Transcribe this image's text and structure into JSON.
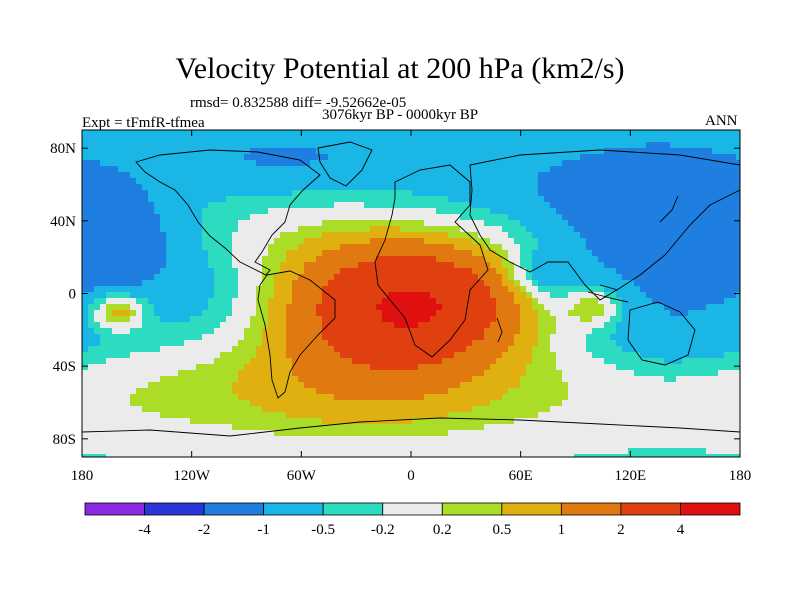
{
  "chart_data": {
    "type": "heatmap",
    "title": "Velocity Potential at 200 hPa (km2/s)",
    "stats_text": "rmsd= 0.832588 diff= -9.52662e-05",
    "left_label": "Expt = tFmfR-tfmea",
    "center_label": "3076kyr BP - 0000kyr BP",
    "right_label": "ANN",
    "xlabel": "",
    "ylabel": "",
    "x_range": [
      -180,
      180
    ],
    "y_range": [
      -90,
      90
    ],
    "x_ticks": [
      {
        "value": -180,
        "label": "180"
      },
      {
        "value": -120,
        "label": "120W"
      },
      {
        "value": -60,
        "label": "60W"
      },
      {
        "value": 0,
        "label": "0"
      },
      {
        "value": 60,
        "label": "60E"
      },
      {
        "value": 120,
        "label": "120E"
      },
      {
        "value": 180,
        "label": "180"
      }
    ],
    "y_ticks": [
      {
        "value": 80,
        "label": "80N"
      },
      {
        "value": 40,
        "label": "40N"
      },
      {
        "value": 0,
        "label": "0"
      },
      {
        "value": -40,
        "label": "40S"
      },
      {
        "value": -80,
        "label": "80S"
      }
    ],
    "colorbar": {
      "levels": [
        -4,
        -2,
        -1,
        -0.5,
        -0.2,
        0.2,
        0.5,
        1,
        2,
        4
      ],
      "level_labels": [
        "-4",
        "-2",
        "-1",
        "-0.5",
        "-0.2",
        "0.2",
        "0.5",
        "1",
        "2",
        "4"
      ],
      "colors": [
        "#8a2be2",
        "#2a36d8",
        "#1f7fe0",
        "#19b6e6",
        "#2ddcc0",
        "#ebebeb",
        "#aadc28",
        "#e0b010",
        "#e07a10",
        "#e04010",
        "#e01010"
      ]
    },
    "field_centers": [
      {
        "lon": 5,
        "lat": -5,
        "amp": 3.8,
        "sx": 38,
        "sy": 22
      },
      {
        "lon": -25,
        "lat": -20,
        "amp": 1.2,
        "sx": 40,
        "sy": 28
      },
      {
        "lon": -160,
        "lat": -10,
        "amp": 1.4,
        "sx": 10,
        "sy": 7
      },
      {
        "lon": 100,
        "lat": -8,
        "amp": 0.9,
        "sx": 10,
        "sy": 7
      },
      {
        "lon": -40,
        "lat": -55,
        "amp": 0.8,
        "sx": 140,
        "sy": 22
      },
      {
        "lon": -60,
        "lat": 25,
        "amp": 0.4,
        "sx": 35,
        "sy": 20
      },
      {
        "lon": 140,
        "lat": 35,
        "amp": -1.2,
        "sx": 35,
        "sy": 30
      },
      {
        "lon": -165,
        "lat": 30,
        "amp": -1.0,
        "sx": 25,
        "sy": 20
      },
      {
        "lon": 70,
        "lat": 10,
        "amp": -0.9,
        "sx": 15,
        "sy": 10
      },
      {
        "lon": -70,
        "lat": 75,
        "amp": -0.7,
        "sx": 60,
        "sy": 15
      },
      {
        "lon": 100,
        "lat": 60,
        "amp": -0.6,
        "sx": 60,
        "sy": 20
      },
      {
        "lon": 150,
        "lat": -25,
        "amp": -0.5,
        "sx": 40,
        "sy": 15
      },
      {
        "lon": -120,
        "lat": 0,
        "amp": -0.4,
        "sx": 30,
        "sy": 20
      }
    ],
    "field_background": -0.35
  }
}
